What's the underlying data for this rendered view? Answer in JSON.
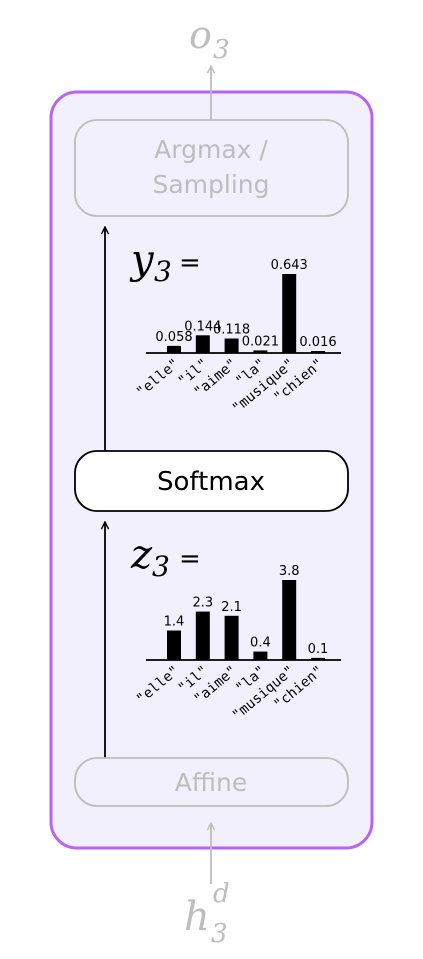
{
  "colors": {
    "frame": "#b565f0",
    "frame_fill": "#f3f0fd",
    "muted": "#bdbdbd",
    "ink": "#000000"
  },
  "output_label": {
    "base": "o",
    "sub": "3"
  },
  "input_label": {
    "base": "h",
    "sub": "3",
    "sup": "d"
  },
  "blocks": {
    "argmax": {
      "lines": [
        "Argmax /",
        "Sampling"
      ],
      "state": "faded"
    },
    "softmax": {
      "lines": [
        "Softmax"
      ],
      "state": "active"
    },
    "affine": {
      "lines": [
        "Affine"
      ],
      "state": "faded"
    }
  },
  "chart_data": [
    {
      "type": "bar",
      "name_var": {
        "base": "y",
        "sub": "3",
        "suffix": "="
      },
      "categories": [
        "\"elle\"",
        "\"il\"",
        "\"aime\"",
        "\"la\"",
        "\"musique\"",
        "\"chien\""
      ],
      "values": [
        0.058,
        0.144,
        0.118,
        0.021,
        0.643,
        0.016
      ],
      "value_labels": [
        "0.058",
        "0.144",
        "0.118",
        "0.021",
        "0.643",
        "0.016"
      ],
      "ylim": [
        0,
        0.643
      ]
    },
    {
      "type": "bar",
      "name_var": {
        "base": "z",
        "sub": "3",
        "suffix": "="
      },
      "categories": [
        "\"elle\"",
        "\"il\"",
        "\"aime\"",
        "\"la\"",
        "\"musique\"",
        "\"chien\""
      ],
      "values": [
        1.4,
        2.3,
        2.1,
        0.4,
        3.8,
        0.1
      ],
      "value_labels": [
        "1.4",
        "2.3",
        "2.1",
        "0.4",
        "3.8",
        "0.1"
      ],
      "ylim": [
        0,
        3.8
      ]
    }
  ]
}
